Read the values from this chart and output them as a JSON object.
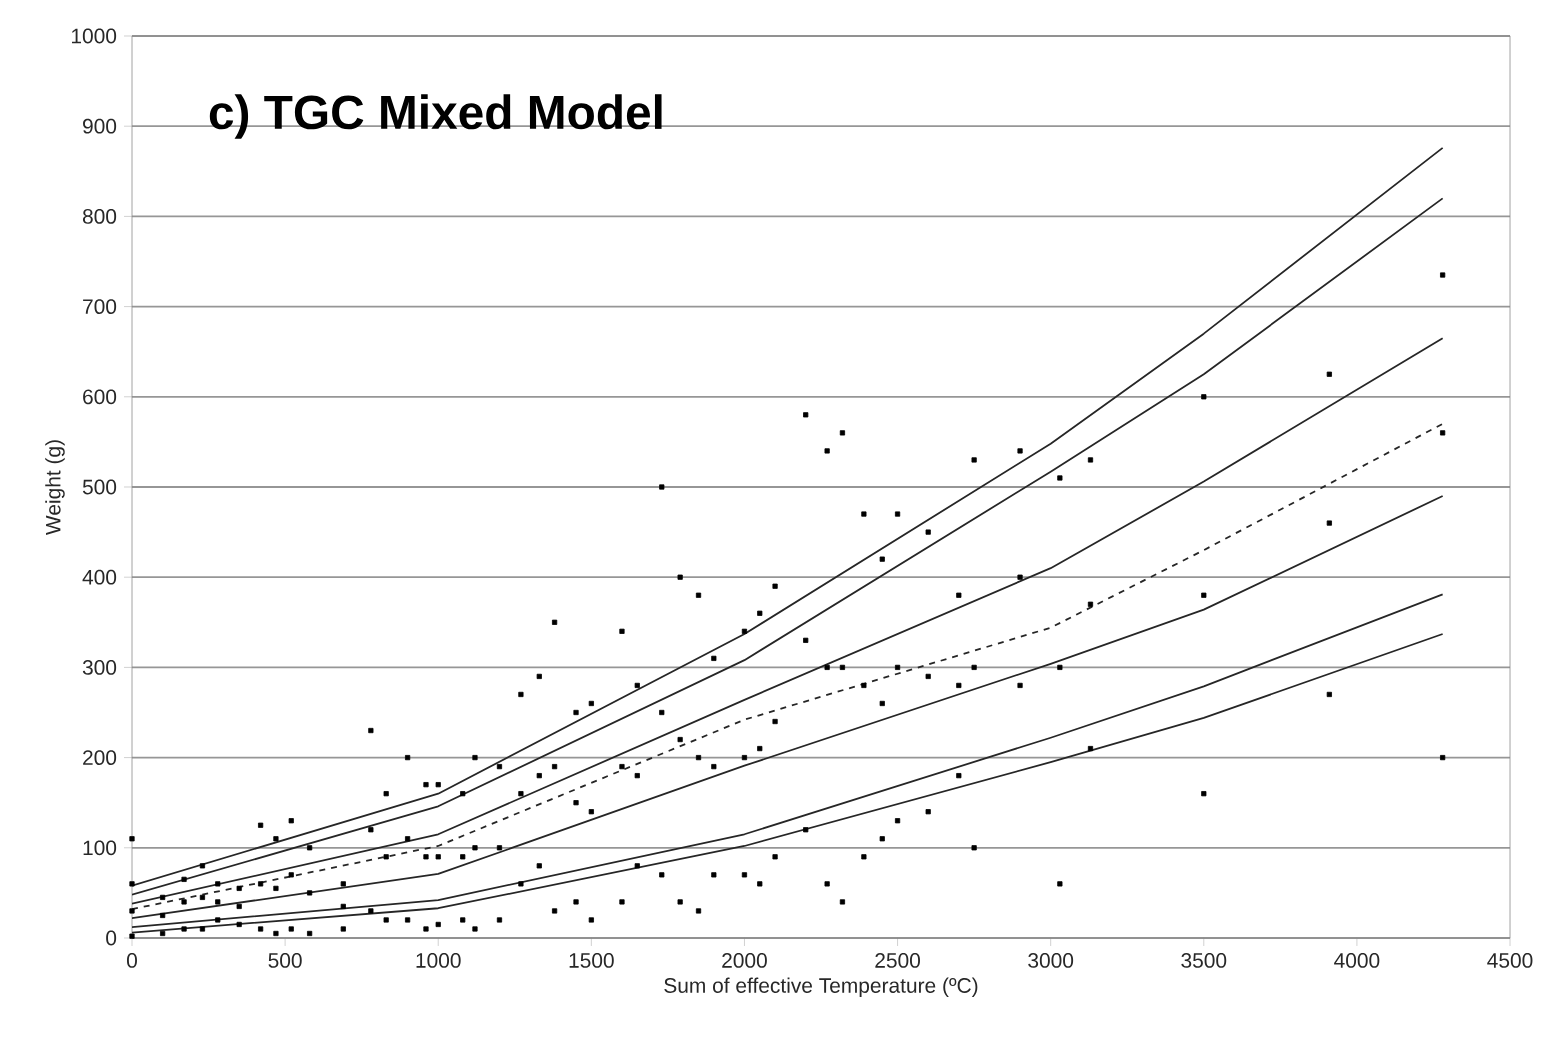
{
  "chart_data": {
    "type": "scatter",
    "title": "c) TGC Mixed Model",
    "xlabel": "Sum of effective Temperature (ºC)",
    "ylabel": "Weight (g)",
    "xlim": [
      0,
      4500
    ],
    "xticks": [
      0,
      500,
      1000,
      1500,
      2000,
      2500,
      3000,
      3500,
      4000,
      4500
    ],
    "ylim": [
      0,
      1000
    ],
    "yticks": [
      0,
      100,
      200,
      300,
      400,
      500,
      600,
      700,
      800,
      900,
      1000
    ],
    "grid": "y",
    "marker": "square",
    "series": [
      {
        "color": "#000000",
        "x": [
          0,
          0,
          0,
          0,
          100,
          100,
          100,
          170,
          170,
          170,
          230,
          230,
          230,
          280,
          280,
          280,
          350,
          350,
          350,
          420,
          420,
          420,
          470,
          470,
          470,
          520,
          520,
          520,
          580,
          580,
          580,
          690,
          690,
          690,
          780,
          780,
          780,
          830,
          830,
          830,
          900,
          900,
          900,
          960,
          960,
          960,
          1000,
          1000,
          1000,
          1080,
          1080,
          1080,
          1120,
          1120,
          1120,
          1200,
          1200,
          1200,
          1270,
          1270,
          1270,
          1330,
          1330,
          1330,
          1380,
          1380,
          1380,
          1450,
          1450,
          1450,
          1500,
          1500,
          1500,
          1600,
          1600,
          1600,
          1650,
          1650,
          1650,
          1730,
          1730,
          1730,
          1790,
          1790,
          1790,
          1850,
          1850,
          1850,
          1900,
          1900,
          1900,
          2000,
          2000,
          2000,
          2050,
          2050,
          2050,
          2100,
          2100,
          2100,
          2200,
          2200,
          2200,
          2270,
          2270,
          2270,
          2320,
          2320,
          2320,
          2390,
          2390,
          2390,
          2450,
          2450,
          2450,
          2500,
          2500,
          2500,
          2600,
          2600,
          2600,
          2700,
          2700,
          2700,
          2750,
          2750,
          2750,
          2900,
          2900,
          2900,
          3030,
          3030,
          3030,
          3130,
          3130,
          3130,
          3500,
          3500,
          3500,
          3910,
          3910,
          3910,
          4280,
          4280,
          4280
        ],
        "values": [
          2,
          30,
          60,
          110,
          5,
          25,
          45,
          10,
          40,
          65,
          10,
          45,
          80,
          20,
          40,
          60,
          15,
          35,
          55,
          10,
          60,
          125,
          5,
          55,
          110,
          10,
          70,
          130,
          5,
          50,
          100,
          10,
          35,
          60,
          30,
          120,
          230,
          20,
          90,
          160,
          20,
          110,
          200,
          10,
          90,
          170,
          15,
          90,
          170,
          20,
          90,
          160,
          10,
          100,
          200,
          20,
          100,
          190,
          60,
          160,
          270,
          80,
          180,
          290,
          30,
          190,
          350,
          40,
          150,
          250,
          20,
          140,
          260,
          40,
          190,
          340,
          80,
          180,
          280,
          70,
          250,
          500,
          40,
          220,
          400,
          30,
          200,
          380,
          70,
          190,
          310,
          70,
          200,
          340,
          60,
          210,
          360,
          90,
          240,
          390,
          120,
          330,
          580,
          60,
          300,
          540,
          40,
          300,
          560,
          90,
          280,
          470,
          110,
          260,
          420,
          130,
          300,
          470,
          140,
          290,
          450,
          180,
          280,
          380,
          100,
          300,
          530,
          280,
          400,
          540,
          60,
          300,
          510,
          210,
          370,
          530,
          160,
          380,
          600,
          270,
          460,
          625,
          200,
          560,
          735
        ]
      },
      {
        "type": "line",
        "color": "#262626",
        "marker": "none",
        "line_style": "solid",
        "x": [
          0,
          1000,
          2000,
          3000,
          3500,
          4280
        ],
        "values": [
          58,
          160,
          337,
          548,
          670,
          876
        ]
      },
      {
        "type": "line",
        "color": "#262626",
        "marker": "none",
        "line_style": "solid",
        "x": [
          0,
          1000,
          2000,
          3000,
          3500,
          4280
        ],
        "values": [
          48,
          146,
          308,
          517,
          625,
          820
        ]
      },
      {
        "type": "line",
        "color": "#262626",
        "marker": "none",
        "line_style": "solid",
        "x": [
          0,
          1000,
          2000,
          3000,
          3500,
          4280
        ],
        "values": [
          38,
          115,
          264,
          410,
          506,
          665
        ]
      },
      {
        "type": "line",
        "color": "#262626",
        "marker": "none",
        "line_style": "dashed",
        "x": [
          0,
          1000,
          2000,
          3000,
          3500,
          4280
        ],
        "values": [
          32,
          102,
          242,
          344,
          430,
          570
        ]
      },
      {
        "type": "line",
        "color": "#262626",
        "marker": "none",
        "line_style": "solid",
        "x": [
          0,
          1000,
          2000,
          3000,
          3500,
          4280
        ],
        "values": [
          22,
          71,
          191,
          304,
          364,
          490
        ]
      },
      {
        "type": "line",
        "color": "#262626",
        "marker": "none",
        "line_style": "solid",
        "x": [
          0,
          1000,
          2000,
          3000,
          3500,
          4280
        ],
        "values": [
          12,
          42,
          115,
          222,
          279,
          381
        ]
      },
      {
        "type": "line",
        "color": "#262626",
        "marker": "none",
        "line_style": "solid",
        "x": [
          0,
          1000,
          2000,
          3000,
          3500,
          4280
        ],
        "values": [
          6,
          33,
          102,
          195,
          244,
          337
        ]
      }
    ]
  }
}
